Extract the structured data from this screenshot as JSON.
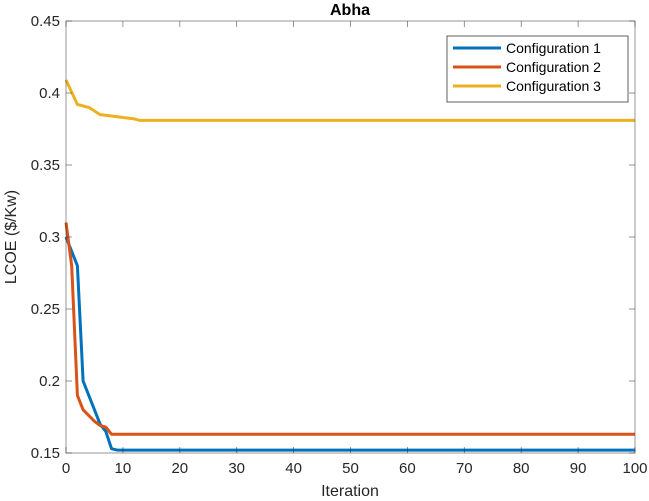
{
  "chart_data": {
    "type": "line",
    "title": "Abha",
    "xlabel": "Iteration",
    "ylabel": "LCOE ($/Kw)",
    "xlim": [
      0,
      100
    ],
    "ylim": [
      0.15,
      0.45
    ],
    "xticks": [
      0,
      10,
      20,
      30,
      40,
      50,
      60,
      70,
      80,
      90,
      100
    ],
    "xtick_labels": [
      "0",
      "10",
      "20",
      "30",
      "40",
      "50",
      "60",
      "70",
      "80",
      "90",
      "100"
    ],
    "yticks": [
      0.15,
      0.2,
      0.25,
      0.3,
      0.35,
      0.4,
      0.45
    ],
    "ytick_labels": [
      "0.15",
      "0.2",
      "0.25",
      "0.3",
      "0.35",
      "0.4",
      "0.45"
    ],
    "grid": false,
    "legend_position": "upper right",
    "series": [
      {
        "name": "Configuration 1",
        "color": "#0072BD",
        "x": [
          0,
          1,
          2,
          3,
          4,
          5,
          6,
          7,
          8,
          9,
          10,
          100
        ],
        "values": [
          0.3,
          0.29,
          0.28,
          0.2,
          0.19,
          0.18,
          0.17,
          0.165,
          0.153,
          0.152,
          0.152,
          0.152
        ]
      },
      {
        "name": "Configuration 2",
        "color": "#D95319",
        "x": [
          0,
          1,
          2,
          3,
          4,
          5,
          6,
          7,
          8,
          9,
          100
        ],
        "values": [
          0.31,
          0.28,
          0.19,
          0.18,
          0.176,
          0.172,
          0.169,
          0.168,
          0.163,
          0.163,
          0.163
        ]
      },
      {
        "name": "Configuration 3",
        "color": "#EDB120",
        "x": [
          0,
          2,
          4,
          6,
          8,
          10,
          12,
          13,
          100
        ],
        "values": [
          0.409,
          0.392,
          0.39,
          0.385,
          0.384,
          0.383,
          0.382,
          0.381,
          0.381
        ]
      }
    ]
  }
}
